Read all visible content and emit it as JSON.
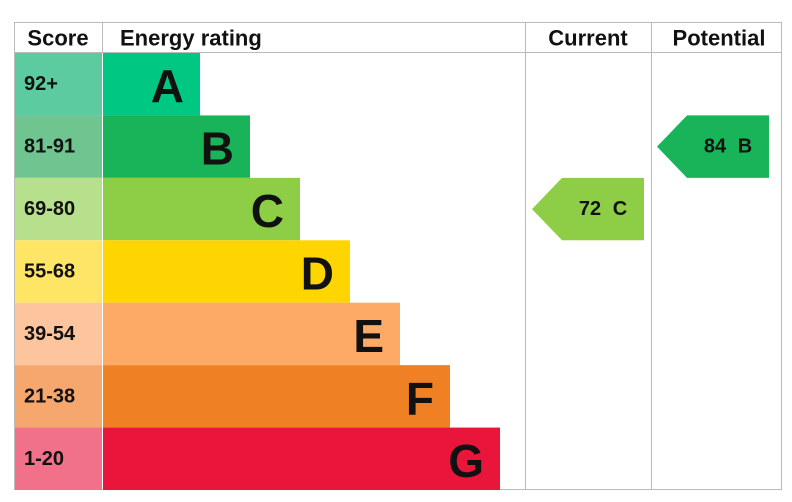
{
  "header": {
    "score": "Score",
    "rating": "Energy rating",
    "current": "Current",
    "potential": "Potential"
  },
  "bands": [
    {
      "score": "92+",
      "rating": "A",
      "color": "#00c781",
      "light": "#5ccba0"
    },
    {
      "score": "81-91",
      "rating": "B",
      "color": "#19b459",
      "light": "#6fc48f"
    },
    {
      "score": "69-80",
      "rating": "C",
      "color": "#8dce46",
      "light": "#b7e08d"
    },
    {
      "score": "55-68",
      "rating": "D",
      "color": "#ffd500",
      "light": "#ffe566"
    },
    {
      "score": "39-54",
      "rating": "E",
      "color": "#fcaa65",
      "light": "#fdc59d"
    },
    {
      "score": "21-38",
      "rating": "F",
      "color": "#ef8023",
      "light": "#f5a76e"
    },
    {
      "score": "1-20",
      "rating": "G",
      "color": "#e9153b",
      "light": "#f07189"
    }
  ],
  "current": {
    "score": 72,
    "rating": "C"
  },
  "potential": {
    "score": 84,
    "rating": "B"
  }
}
